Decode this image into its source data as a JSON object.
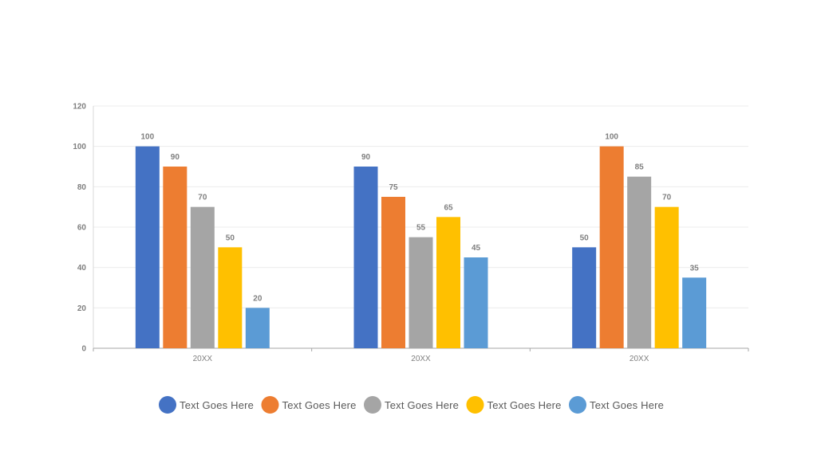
{
  "chart_data": {
    "type": "bar",
    "title": "",
    "xlabel": "",
    "ylabel": "",
    "ylim": [
      0,
      120
    ],
    "yticks": [
      0,
      20,
      40,
      60,
      80,
      100,
      120
    ],
    "grid": true,
    "legend_position": "bottom",
    "categories": [
      "20XX",
      "20XX",
      "20XX"
    ],
    "series": [
      {
        "name": "Text Goes Here",
        "color": "#4472C4",
        "values": [
          100,
          90,
          50
        ]
      },
      {
        "name": "Text Goes Here",
        "color": "#ED7D31",
        "values": [
          90,
          75,
          100
        ]
      },
      {
        "name": "Text Goes Here",
        "color": "#A5A5A5",
        "values": [
          70,
          55,
          85
        ]
      },
      {
        "name": "Text Goes Here",
        "color": "#FFC000",
        "values": [
          50,
          65,
          70
        ]
      },
      {
        "name": "Text Goes Here",
        "color": "#5B9BD5",
        "values": [
          20,
          45,
          35
        ]
      }
    ]
  }
}
